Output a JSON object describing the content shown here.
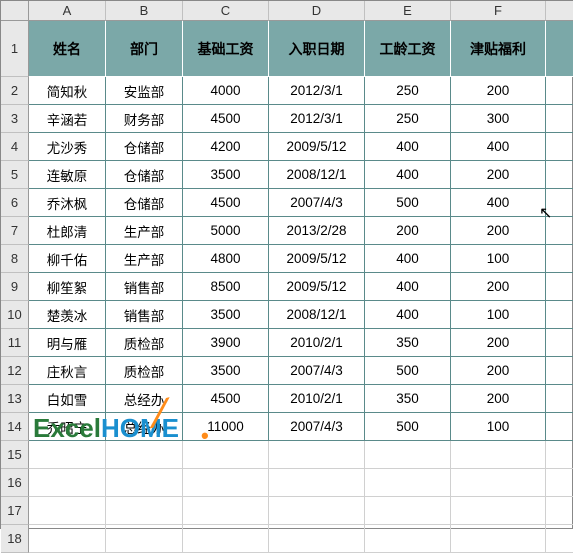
{
  "columns": [
    "",
    "A",
    "B",
    "C",
    "D",
    "E",
    "F",
    ""
  ],
  "header_row_num": "1",
  "headers": [
    "姓名",
    "部门",
    "基础工资",
    "入职日期",
    "工龄工资",
    "津贴福利"
  ],
  "partial_header": "",
  "rows": [
    {
      "n": "2",
      "c": [
        "简知秋",
        "安监部",
        "4000",
        "2012/3/1",
        "250",
        "200"
      ]
    },
    {
      "n": "3",
      "c": [
        "辛涵若",
        "财务部",
        "4500",
        "2012/3/1",
        "250",
        "300"
      ]
    },
    {
      "n": "4",
      "c": [
        "尤沙秀",
        "仓储部",
        "4200",
        "2009/5/12",
        "400",
        "400"
      ]
    },
    {
      "n": "5",
      "c": [
        "连敏原",
        "仓储部",
        "3500",
        "2008/12/1",
        "400",
        "200"
      ]
    },
    {
      "n": "6",
      "c": [
        "乔沐枫",
        "仓储部",
        "4500",
        "2007/4/3",
        "500",
        "400"
      ]
    },
    {
      "n": "7",
      "c": [
        "杜郎清",
        "生产部",
        "5000",
        "2013/2/28",
        "200",
        "200"
      ]
    },
    {
      "n": "8",
      "c": [
        "柳千佑",
        "生产部",
        "4800",
        "2009/5/12",
        "400",
        "100"
      ]
    },
    {
      "n": "9",
      "c": [
        "柳笙絮",
        "销售部",
        "8500",
        "2009/5/12",
        "400",
        "200"
      ]
    },
    {
      "n": "10",
      "c": [
        "楚羡冰",
        "销售部",
        "3500",
        "2008/12/1",
        "400",
        "100"
      ]
    },
    {
      "n": "11",
      "c": [
        "明与雁",
        "质检部",
        "3900",
        "2010/2/1",
        "350",
        "200"
      ]
    },
    {
      "n": "12",
      "c": [
        "庄秋言",
        "质检部",
        "3500",
        "2007/4/3",
        "500",
        "200"
      ]
    },
    {
      "n": "13",
      "c": [
        "白如雪",
        "总经办",
        "4500",
        "2010/2/1",
        "350",
        "200"
      ]
    },
    {
      "n": "14",
      "c": [
        "乔昭宁",
        "总经办",
        "11000",
        "2007/4/3",
        "500",
        "100"
      ]
    }
  ],
  "empty_rows": [
    "15",
    "16",
    "17",
    "18"
  ],
  "logo_text": {
    "pre": "E",
    "x": "x",
    "cel": "cel",
    "home": "HOME"
  },
  "colors": {
    "header_bg": "#7ba8a8",
    "grid": "#d0d0d0",
    "table_border": "#5a8a8a",
    "colhdr_bg": "#e8e8e8"
  }
}
